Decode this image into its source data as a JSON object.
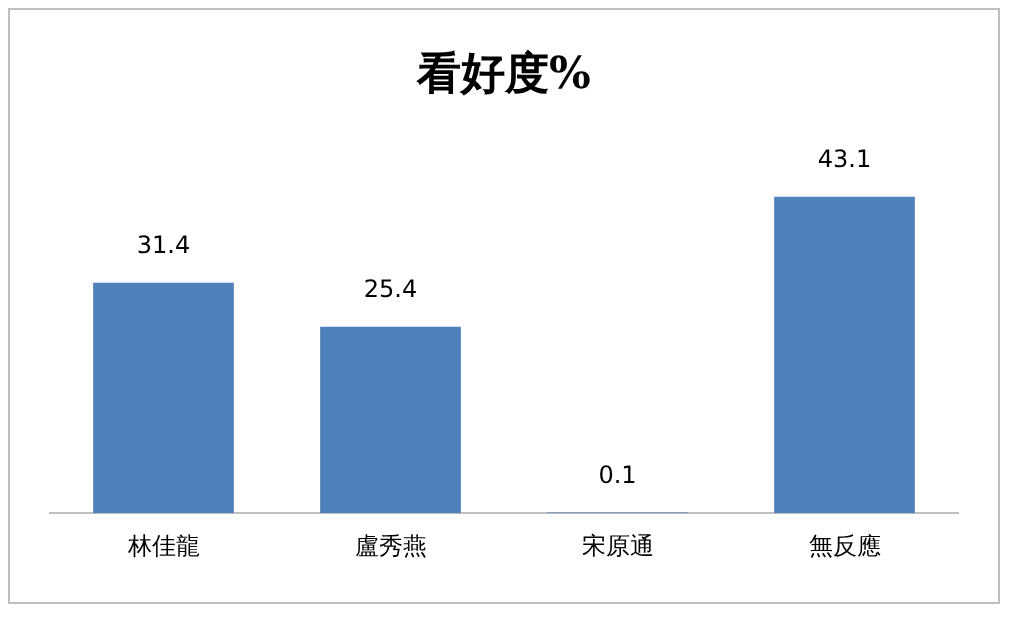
{
  "chart_data": {
    "type": "bar",
    "title": "看好度%",
    "categories": [
      "林佳龍",
      "盧秀燕",
      "宋原通",
      "無反應"
    ],
    "values": [
      31.4,
      25.4,
      0.1,
      43.1
    ],
    "color": "#4f81bd",
    "data_labels": true,
    "grid": false,
    "legend": false,
    "tick_labels": "x"
  }
}
